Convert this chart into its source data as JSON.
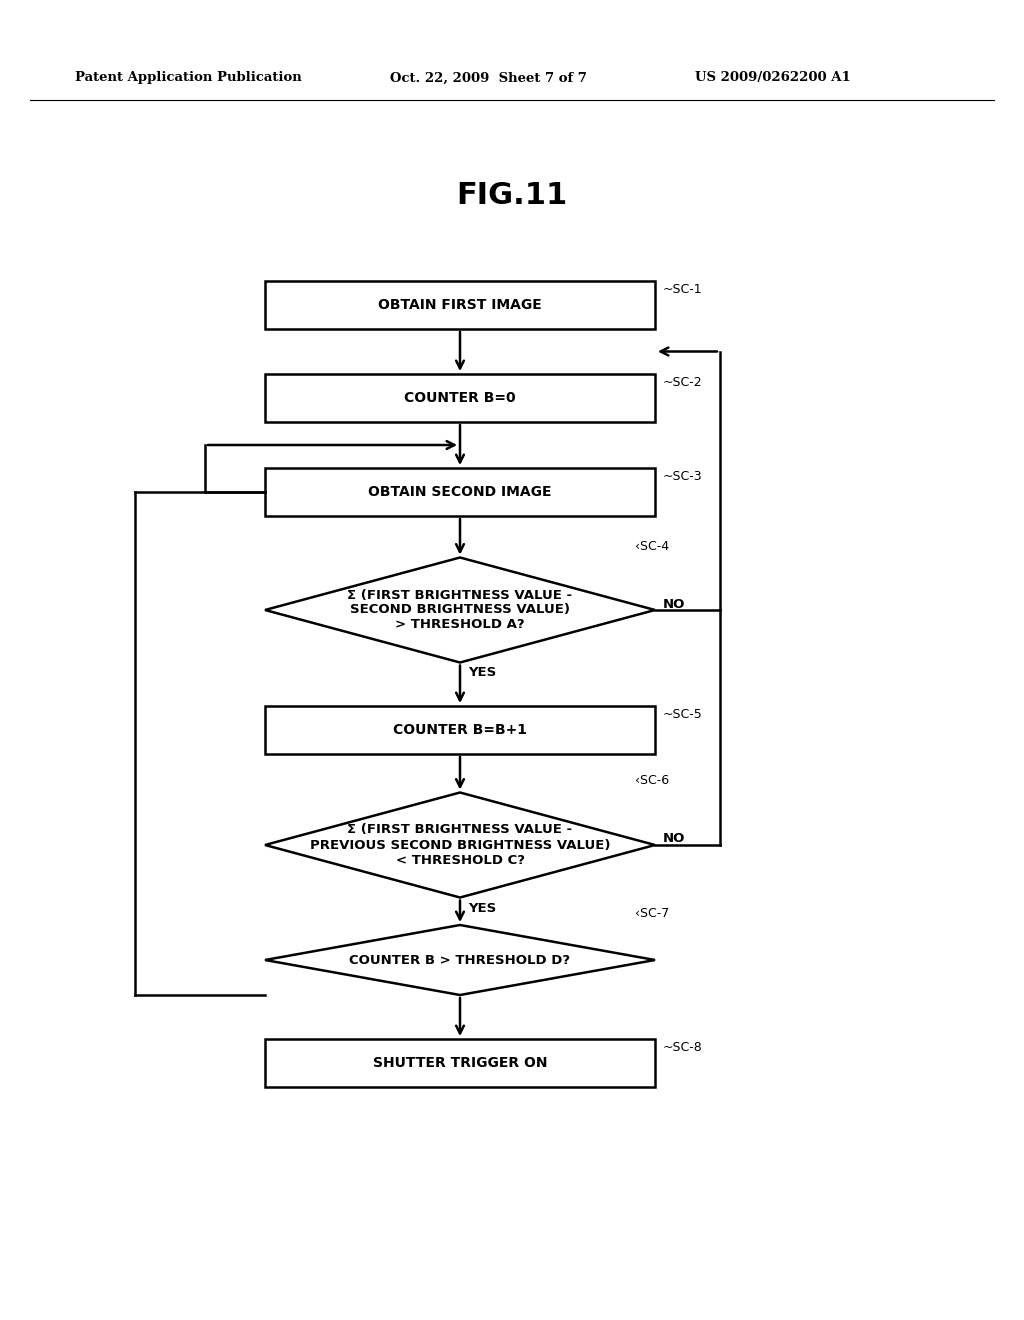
{
  "title": "FIG.11",
  "header_left": "Patent Application Publication",
  "header_mid": "Oct. 22, 2009  Sheet 7 of 7",
  "header_right": "US 2009/0262200 A1",
  "background": "#ffffff",
  "sc1_label": "OBTAIN FIRST IMAGE",
  "sc2_label": "COUNTER B=0",
  "sc3_label": "OBTAIN SECOND IMAGE",
  "sc4_label": "Σ (FIRST BRIGHTNESS VALUE -\nSECOND BRIGHTNESS VALUE)\n> THRESHOLD A?",
  "sc5_label": "COUNTER B=B+1",
  "sc6_label": "Σ (FIRST BRIGHTNESS VALUE -\nPREVIOUS SECOND BRIGHTNESS VALUE)\n< THRESHOLD C?",
  "sc7_label": "COUNTER B > THRESHOLD D?",
  "sc8_label": "SHUTTER TRIGGER ON",
  "yes_label": "YES",
  "no_label": "NO",
  "tag1": "~SC-1",
  "tag2": "~SC-2",
  "tag3": "~SC-3",
  "tag4": "‹SC-4",
  "tag5": "~SC-5",
  "tag6": "‹SC-6",
  "tag7": "‹SC-7",
  "tag8": "~SC-8"
}
